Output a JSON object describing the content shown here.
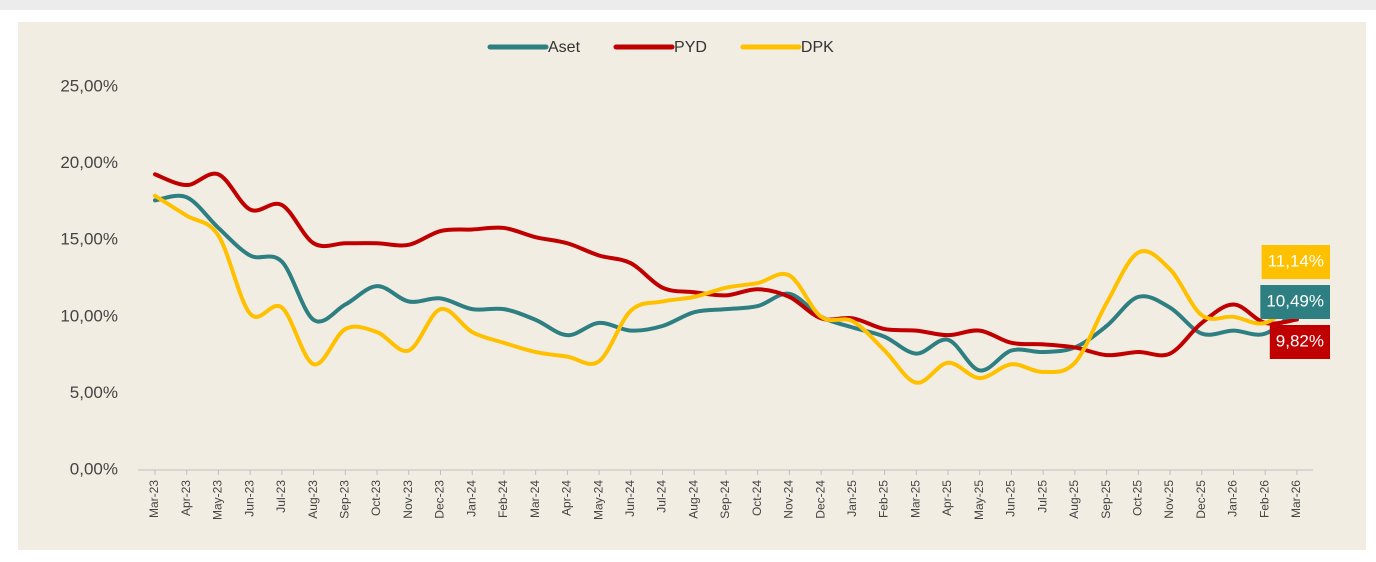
{
  "chart_data": {
    "type": "line",
    "categories": [
      "Mar-23",
      "Apr-23",
      "May-23",
      "Jun-23",
      "Jul-23",
      "Aug-23",
      "Sep-23",
      "Oct-23",
      "Nov-23",
      "Dec-23",
      "Jan-24",
      "Feb-24",
      "Mar-24",
      "Apr-24",
      "May-24",
      "Jun-24",
      "Jul-24",
      "Aug-24",
      "Sep-24",
      "Oct-24",
      "Nov-24",
      "Dec-24",
      "Jan-25",
      "Feb-25",
      "Mar-25",
      "Apr-25",
      "May-25",
      "Jun-25",
      "Jul-25",
      "Aug-25",
      "Sep-25",
      "Oct-25",
      "Nov-25",
      "Dec-25",
      "Jan-26",
      "Feb-26",
      "Mar-26"
    ],
    "series": [
      {
        "name": "Aset",
        "color": "#2e7f82",
        "values": [
          17.6,
          17.8,
          15.8,
          14.0,
          13.6,
          9.8,
          10.8,
          12.0,
          11.0,
          11.2,
          10.5,
          10.5,
          9.8,
          8.8,
          9.6,
          9.1,
          9.4,
          10.3,
          10.5,
          10.7,
          11.5,
          10.0,
          9.3,
          8.7,
          7.6,
          8.5,
          6.5,
          7.8,
          7.7,
          8.0,
          9.4,
          11.3,
          10.6,
          8.9,
          9.1,
          8.9,
          10.49
        ],
        "value_labels": [
          null,
          null,
          null,
          null,
          null,
          null,
          null,
          null,
          null,
          null,
          null,
          null,
          null,
          null,
          null,
          null,
          null,
          null,
          null,
          null,
          null,
          null,
          null,
          null,
          null,
          null,
          null,
          null,
          null,
          null,
          null,
          null,
          null,
          null,
          null,
          null,
          "10,49%"
        ]
      },
      {
        "name": "PYD",
        "color": "#c00000",
        "values": [
          19.3,
          18.6,
          19.3,
          17.0,
          17.3,
          14.8,
          14.8,
          14.8,
          14.7,
          15.6,
          15.7,
          15.8,
          15.2,
          14.8,
          14.0,
          13.5,
          11.9,
          11.6,
          11.4,
          11.8,
          11.3,
          9.9,
          9.9,
          9.2,
          9.1,
          8.8,
          9.1,
          8.3,
          8.2,
          8.0,
          7.5,
          7.7,
          7.6,
          9.6,
          10.8,
          9.6,
          9.82
        ],
        "value_labels": [
          null,
          null,
          null,
          null,
          null,
          null,
          null,
          null,
          null,
          null,
          null,
          null,
          null,
          null,
          null,
          null,
          null,
          null,
          null,
          null,
          null,
          null,
          null,
          null,
          null,
          null,
          null,
          null,
          null,
          null,
          null,
          null,
          null,
          null,
          null,
          null,
          "9,82%"
        ]
      },
      {
        "name": "DPK",
        "color": "#ffc000",
        "values": [
          17.9,
          16.6,
          15.3,
          10.2,
          10.6,
          6.9,
          9.2,
          9.0,
          7.8,
          10.5,
          9.0,
          8.3,
          7.7,
          7.4,
          7.1,
          10.4,
          11.0,
          11.3,
          11.9,
          12.2,
          12.7,
          10.0,
          9.7,
          7.8,
          5.7,
          7.0,
          6.0,
          6.9,
          6.4,
          7.0,
          10.9,
          14.2,
          13.1,
          10.1,
          10.0,
          9.6,
          11.14
        ],
        "value_labels": [
          null,
          null,
          null,
          null,
          null,
          null,
          null,
          null,
          null,
          null,
          null,
          null,
          null,
          null,
          null,
          null,
          null,
          null,
          null,
          null,
          null,
          null,
          null,
          null,
          null,
          null,
          null,
          null,
          null,
          null,
          null,
          null,
          null,
          null,
          null,
          null,
          "11,14%"
        ]
      }
    ],
    "ylim": [
      0,
      25
    ],
    "yticks": [
      {
        "value": 0,
        "label": "0,00%"
      },
      {
        "value": 5,
        "label": "5,00%"
      },
      {
        "value": 10,
        "label": "10,00%"
      },
      {
        "value": 15,
        "label": "15,00%"
      },
      {
        "value": 20,
        "label": "20,00%"
      },
      {
        "value": 25,
        "label": "25,00%"
      }
    ],
    "grid": false,
    "legend": "top"
  }
}
